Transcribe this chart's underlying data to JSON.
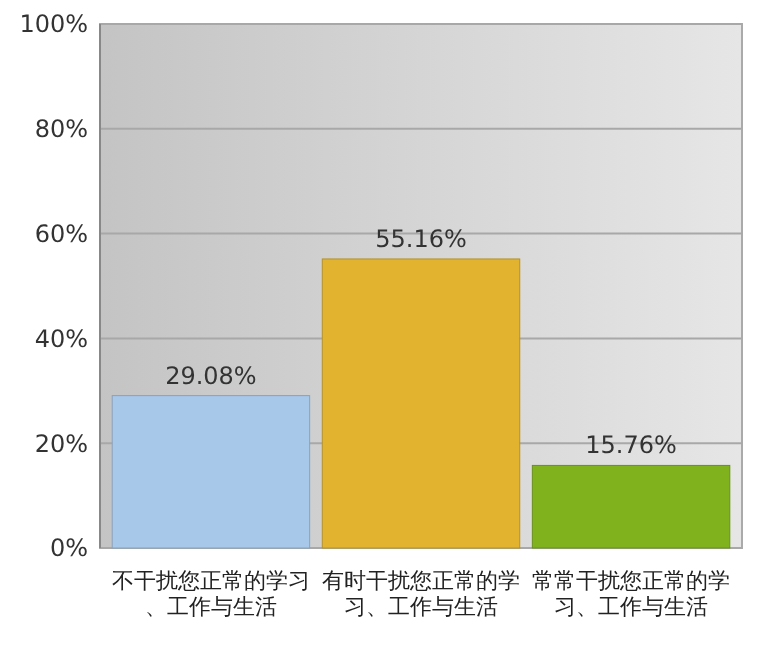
{
  "chart_data": {
    "type": "bar",
    "categories": [
      "不干扰您正常的学习、工作与生活",
      "有时干扰您正常的学习、工作与生活",
      "常常干扰您正常的学习、工作与生活"
    ],
    "values": [
      29.08,
      55.16,
      15.76
    ],
    "colors": [
      "#a8c8ea",
      "#e2b32e",
      "#80b21e"
    ],
    "value_labels": [
      "29.08%",
      "55.16%",
      "15.76%"
    ],
    "ylim": [
      0,
      100
    ],
    "yticks": [
      {
        "value": 0,
        "label": "0%"
      },
      {
        "value": 20,
        "label": "20%"
      },
      {
        "value": 40,
        "label": "40%"
      },
      {
        "value": 60,
        "label": "60%"
      },
      {
        "value": 80,
        "label": "80%"
      },
      {
        "value": 100,
        "label": "100%"
      }
    ],
    "grid": true
  }
}
